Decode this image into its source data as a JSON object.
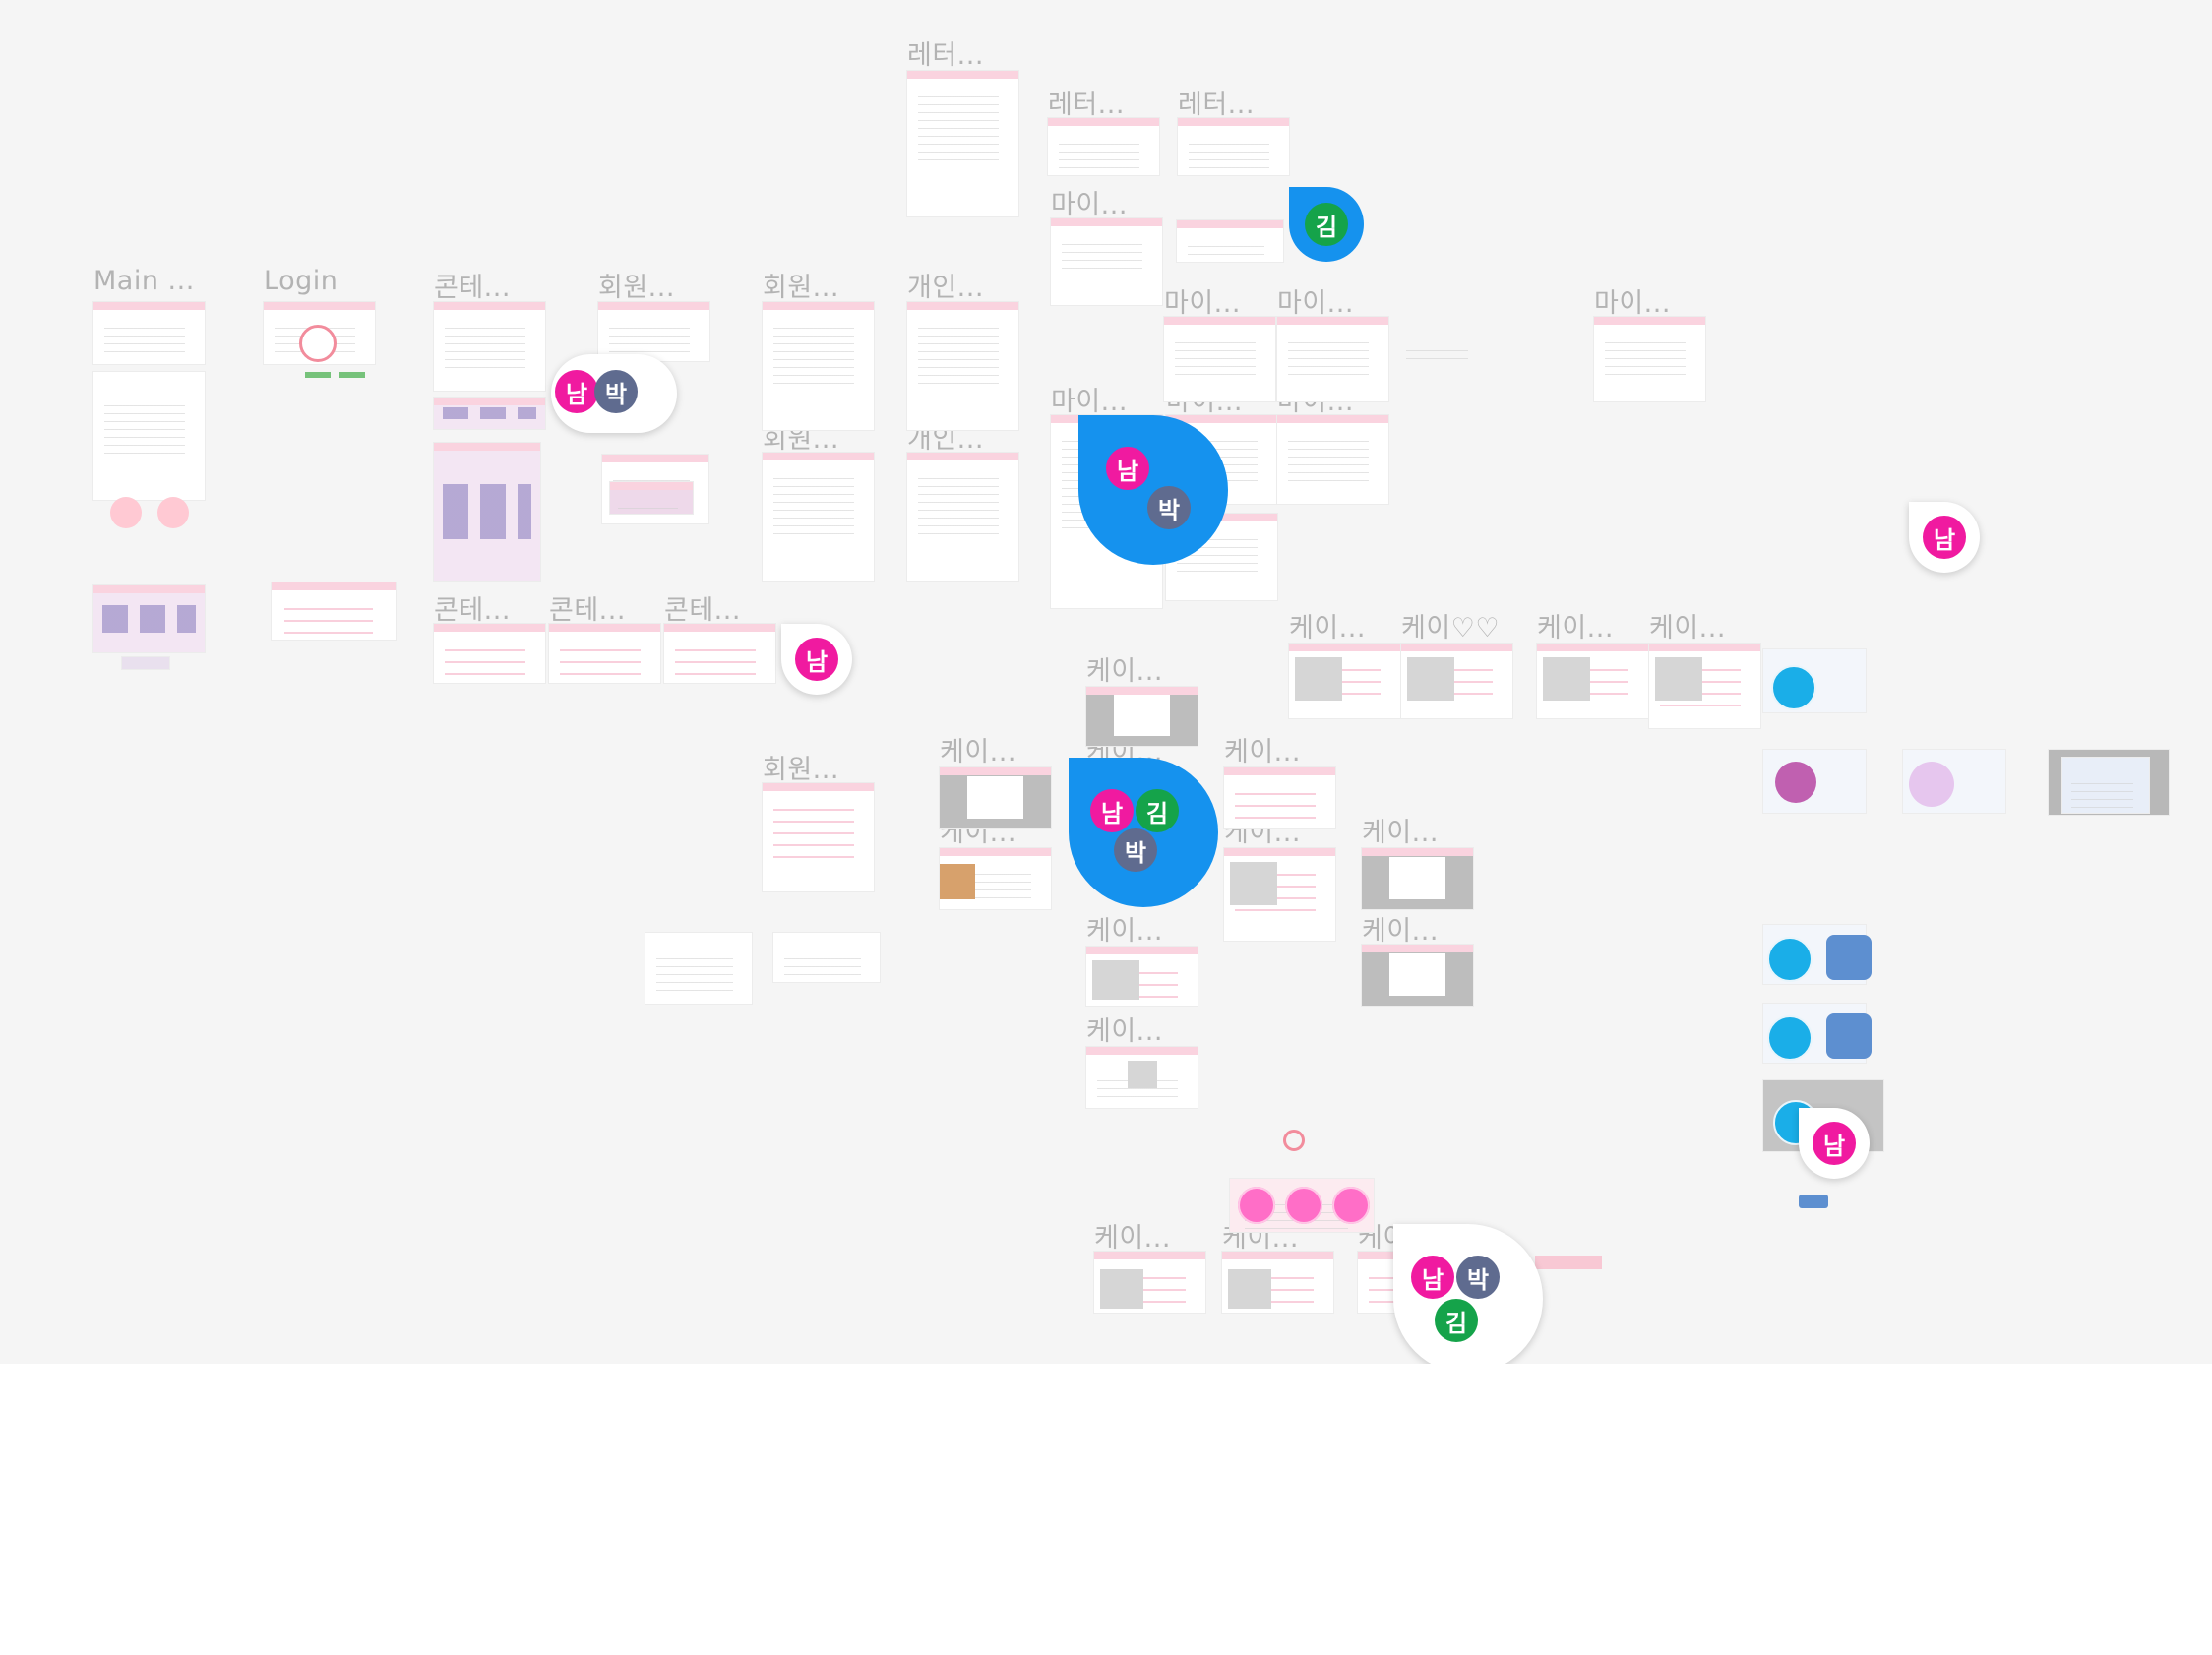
{
  "frame_titles": {
    "main": "Main ...",
    "login": "Login",
    "content_1": "콘테...",
    "member_1": "회원...",
    "member_2": "회원...",
    "personal_1": "개인...",
    "letter_1": "레터...",
    "letter_2": "레터...",
    "letter_3": "레터...",
    "my_1": "마이...",
    "my_2": "마이...",
    "my_3": "마이...",
    "my_4": "마이...",
    "my_5": "마이...",
    "my_6": "마이...",
    "my_7": "마이...",
    "member_3": "회원...",
    "personal_2": "개인...",
    "content_2": "콘테...",
    "content_3": "콘테...",
    "content_4": "콘테...",
    "cake_1": "케이...",
    "cake_2": "케이♡♡",
    "cake_3": "케이...",
    "cake_4": "케이...",
    "cake_5": "케이...",
    "member_4": "회원...",
    "cake_6": "케이...",
    "cake_7": "케이...",
    "cake_8": "케이...",
    "cake_9": "케이...",
    "cake_10": "케이...",
    "cake_11": "케이...",
    "cake_12": "케이...",
    "cake_13": "케이...",
    "cake_14": "케이...",
    "cake_15": "케이...",
    "cake_16": "케이...",
    "cake_17": "케이..."
  },
  "collaborators": {
    "nam": "남",
    "park": "박",
    "kim": "김"
  },
  "colors": {
    "canvas": "#f5f5f5",
    "frame_title": "#b3b3b3",
    "header_pink": "#fad3df",
    "cursor_blue": "#1592ee",
    "nam": "#f01aa0",
    "park": "#5f6b8f",
    "kim": "#15a34a",
    "accent_cyan": "#1aaee8"
  }
}
